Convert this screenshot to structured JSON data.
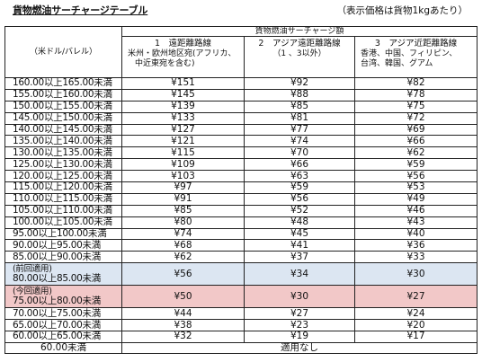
{
  "title": "貨物燃油サーチャージテーブル",
  "note": "（表示価格は貨物1kgあたり）",
  "table": {
    "unit_label": "（米ドル/バレル）",
    "group_header": "貨物燃油サーチャージ額",
    "columns": [
      {
        "title": "1　遠距離路線",
        "detail": [
          "米州・欧州地区宛(アフリカ、",
          "中近東宛を含む)"
        ]
      },
      {
        "title": "2　アジア遠距離路線",
        "detail": [
          "（1 、3以外）"
        ]
      },
      {
        "title": "3　アジア近距離路線",
        "detail": [
          "香港、中国、フィリピン、",
          "台湾、韓国、グアム"
        ]
      }
    ],
    "rows": [
      {
        "range": "160.00以上165.00未満",
        "v1": "¥151",
        "v2": "¥92",
        "v3": "¥82"
      },
      {
        "range": "155.00以上160.00未満",
        "v1": "¥145",
        "v2": "¥88",
        "v3": "¥78"
      },
      {
        "range": "150.00以上155.00未満",
        "v1": "¥139",
        "v2": "¥85",
        "v3": "¥75"
      },
      {
        "range": "145.00以上150.00未満",
        "v1": "¥133",
        "v2": "¥81",
        "v3": "¥72"
      },
      {
        "range": "140.00以上145.00未満",
        "v1": "¥127",
        "v2": "¥77",
        "v3": "¥69"
      },
      {
        "range": "135.00以上140.00未満",
        "v1": "¥121",
        "v2": "¥74",
        "v3": "¥66"
      },
      {
        "range": "130.00以上135.00未満",
        "v1": "¥115",
        "v2": "¥70",
        "v3": "¥62"
      },
      {
        "range": "125.00以上130.00未満",
        "v1": "¥109",
        "v2": "¥66",
        "v3": "¥59"
      },
      {
        "range": "120.00以上125.00未満",
        "v1": "¥103",
        "v2": "¥63",
        "v3": "¥56"
      },
      {
        "range": "115.00以上120.00未満",
        "v1": "¥97",
        "v2": "¥59",
        "v3": "¥53"
      },
      {
        "range": "110.00以上115.00未満",
        "v1": "¥91",
        "v2": "¥56",
        "v3": "¥49"
      },
      {
        "range": "105.00以上110.00未満",
        "v1": "¥85",
        "v2": "¥52",
        "v3": "¥46"
      },
      {
        "range": "100.00以上105.00未満",
        "v1": "¥80",
        "v2": "¥48",
        "v3": "¥43"
      },
      {
        "range": "95.00以上100.00未満",
        "v1": "¥74",
        "v2": "¥45",
        "v3": "¥40"
      },
      {
        "range": "90.00以上95.00未満",
        "v1": "¥68",
        "v2": "¥41",
        "v3": "¥36"
      },
      {
        "range": "85.00以上90.00未満",
        "v1": "¥62",
        "v2": "¥37",
        "v3": "¥33"
      }
    ],
    "previous": {
      "prefix": "(前回適用)",
      "range": "80.00以上85.00未満",
      "v1": "¥56",
      "v2": "¥34",
      "v3": "¥30"
    },
    "current": {
      "prefix": "(今回適用)",
      "range": "75.00以上80.00未満",
      "v1": "¥50",
      "v2": "¥30",
      "v3": "¥27"
    },
    "rows_after": [
      {
        "range": "70.00以上75.00未満",
        "v1": "¥44",
        "v2": "¥27",
        "v3": "¥24"
      },
      {
        "range": "65.00以上70.00未満",
        "v1": "¥38",
        "v2": "¥23",
        "v3": "¥20"
      },
      {
        "range": "60.00以上65.00未満",
        "v1": "¥32",
        "v2": "¥19",
        "v3": "¥17"
      }
    ],
    "last_row": {
      "range": "60.00未満",
      "value": "適用なし"
    },
    "colors": {
      "previous_bg": "#dce6f2",
      "current_bg": "#f2c8c8"
    }
  }
}
